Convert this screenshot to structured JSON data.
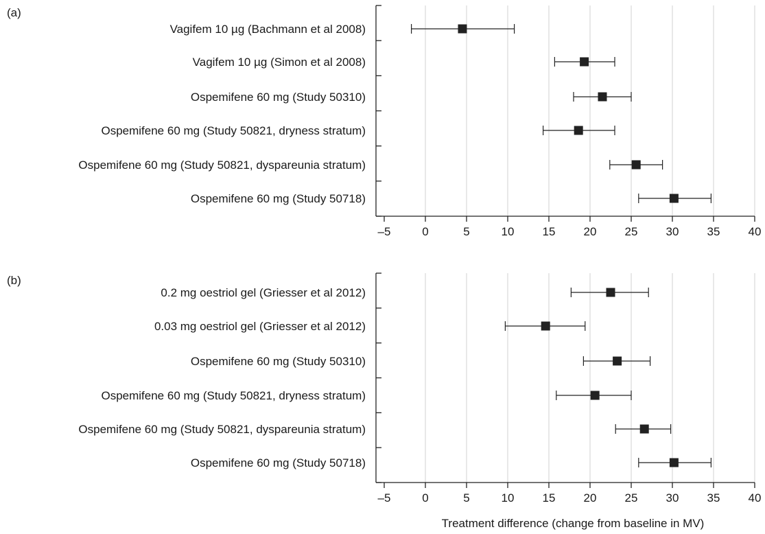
{
  "chart_data": [
    {
      "type": "forest",
      "panel_label": "(a)",
      "xlim": [
        -5,
        40
      ],
      "xticks": [
        -5,
        0,
        5,
        10,
        15,
        20,
        25,
        30,
        35,
        40
      ],
      "tick_labels": [
        "–5",
        "0",
        "5",
        "10",
        "15",
        "20",
        "25",
        "30",
        "35",
        "40"
      ],
      "grid": true,
      "marker_color": "#222222",
      "studies": [
        {
          "label": "Vagifem 10 µg (Bachmann et al 2008)",
          "estimate": 4.5,
          "ci_low": -1.7,
          "ci_high": 10.8
        },
        {
          "label": "Vagifem 10 µg (Simon et al 2008)",
          "estimate": 19.3,
          "ci_low": 15.7,
          "ci_high": 23.0
        },
        {
          "label": "Ospemifene 60 mg (Study 50310)",
          "estimate": 21.5,
          "ci_low": 18.0,
          "ci_high": 25.0
        },
        {
          "label": "Ospemifene 60 mg (Study 50821, dryness stratum)",
          "estimate": 18.6,
          "ci_low": 14.3,
          "ci_high": 23.0
        },
        {
          "label": "Ospemifene 60 mg (Study 50821, dyspareunia stratum)",
          "estimate": 25.6,
          "ci_low": 22.4,
          "ci_high": 28.8
        },
        {
          "label": "Ospemifene 60 mg (Study 50718)",
          "estimate": 30.2,
          "ci_low": 25.9,
          "ci_high": 34.7
        }
      ]
    },
    {
      "type": "forest",
      "panel_label": "(b)",
      "xlim": [
        -5,
        40
      ],
      "xticks": [
        -5,
        0,
        5,
        10,
        15,
        20,
        25,
        30,
        35,
        40
      ],
      "tick_labels": [
        "–5",
        "0",
        "5",
        "10",
        "15",
        "20",
        "25",
        "30",
        "35",
        "40"
      ],
      "grid": true,
      "marker_color": "#222222",
      "xlabel": "Treatment difference (change from baseline in MV)",
      "studies": [
        {
          "label": "0.2 mg oestriol gel (Griesser et al 2012)",
          "estimate": 22.5,
          "ci_low": 17.7,
          "ci_high": 27.1
        },
        {
          "label": "0.03 mg oestriol gel (Griesser et al 2012)",
          "estimate": 14.6,
          "ci_low": 9.7,
          "ci_high": 19.4
        },
        {
          "label": "Ospemifene 60 mg (Study 50310)",
          "estimate": 23.3,
          "ci_low": 19.2,
          "ci_high": 27.3
        },
        {
          "label": "Ospemifene 60 mg (Study 50821, dryness stratum)",
          "estimate": 20.6,
          "ci_low": 15.9,
          "ci_high": 25.0
        },
        {
          "label": "Ospemifene 60 mg (Study 50821, dyspareunia stratum)",
          "estimate": 26.6,
          "ci_low": 23.1,
          "ci_high": 29.8
        },
        {
          "label": "Ospemifene 60 mg (Study 50718)",
          "estimate": 30.2,
          "ci_low": 25.9,
          "ci_high": 34.7
        }
      ]
    }
  ]
}
